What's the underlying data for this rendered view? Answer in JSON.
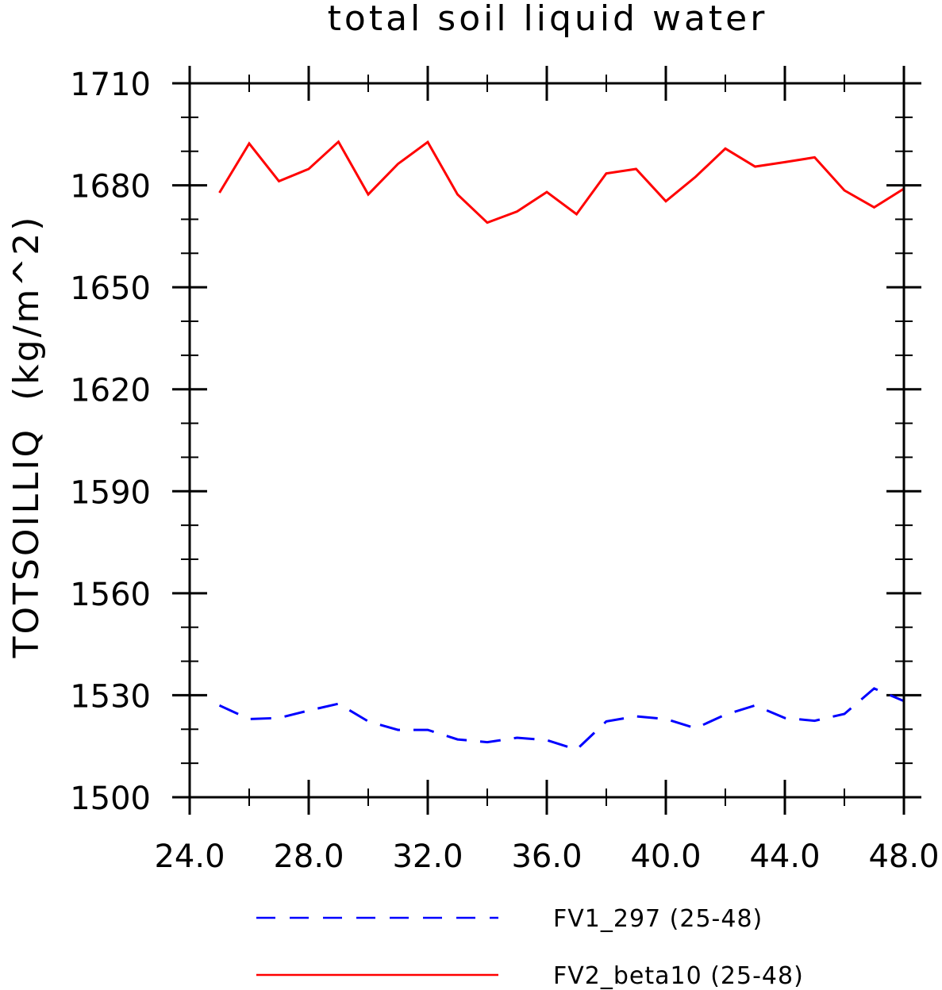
{
  "chart_data": {
    "type": "line",
    "title": "total soil liquid water",
    "xlabel": "",
    "ylabel": "TOTSOILLIQ  (kg/m^2)",
    "xlim": [
      24.0,
      48.0
    ],
    "ylim": [
      1500,
      1710
    ],
    "x_ticks": [
      "24.0",
      "28.0",
      "32.0",
      "36.0",
      "40.0",
      "44.0",
      "48.0"
    ],
    "y_ticks": [
      "1500",
      "1530",
      "1560",
      "1590",
      "1620",
      "1650",
      "1680",
      "1710"
    ],
    "legend_position": "bottom",
    "grid": false,
    "x": [
      25,
      26,
      27,
      28,
      29,
      30,
      31,
      32,
      33,
      34,
      35,
      36,
      37,
      38,
      39,
      40,
      41,
      42,
      43,
      44,
      45,
      46,
      47,
      48
    ],
    "series": [
      {
        "name": "FV1_297 (25-48)",
        "color": "#0000ff",
        "dash": "dashed",
        "values": [
          1527,
          1523,
          1523.3,
          1525.5,
          1527.5,
          1522.3,
          1519.8,
          1519.8,
          1517,
          1516.2,
          1517.5,
          1516.8,
          1514,
          1522.3,
          1523.8,
          1523,
          1520.3,
          1524.3,
          1527,
          1523.3,
          1522.5,
          1524.5,
          1532,
          1528.3
        ]
      },
      {
        "name": "FV2_beta10 (25-48)",
        "color": "#ff0000",
        "dash": "solid",
        "values": [
          1677.8,
          1692.3,
          1681.2,
          1684.8,
          1692.8,
          1677.3,
          1686.3,
          1692.7,
          1677.3,
          1669,
          1672.3,
          1678,
          1671.5,
          1683.5,
          1684.8,
          1675.3,
          1682.5,
          1690.8,
          1685.5,
          1686.8,
          1688.2,
          1678.5,
          1673.5,
          1679
        ]
      }
    ]
  }
}
